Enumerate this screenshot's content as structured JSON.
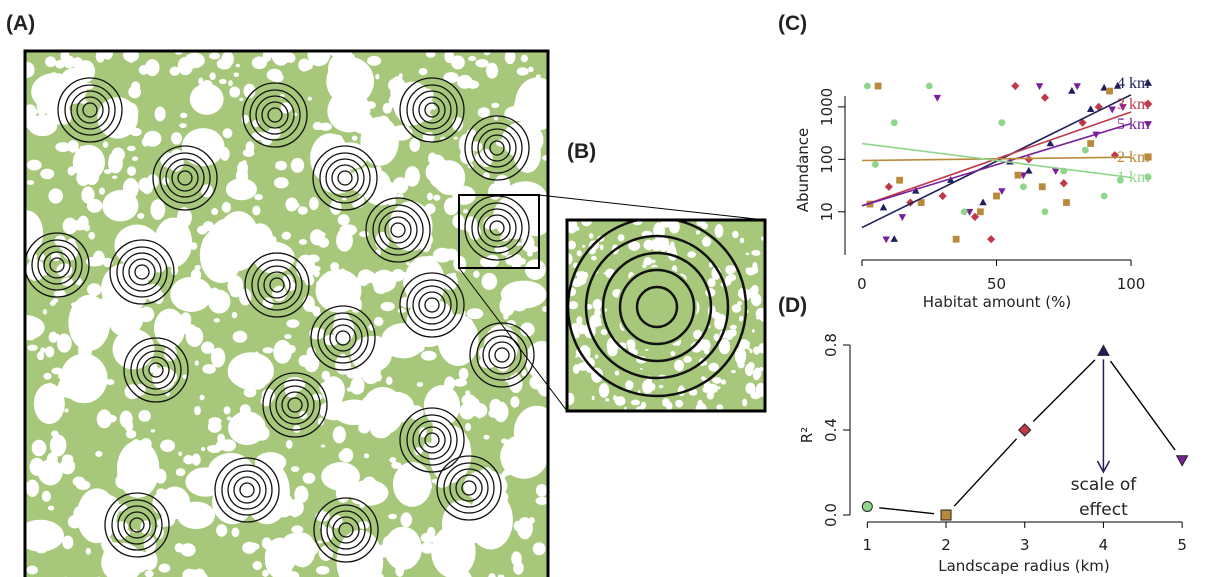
{
  "panel_labels": [
    "(A)",
    "(B)",
    "(C)",
    "(D)"
  ],
  "chart_data": [
    {
      "type": "scatter",
      "x_label": "Habitat amount (%)",
      "y_label": "Abundance",
      "xlim": [
        -5,
        105
      ],
      "xticks": [
        0,
        50,
        100
      ],
      "ylim": [
        1.5,
        2500
      ],
      "yticks": [
        10,
        100,
        1000
      ],
      "log_y": true,
      "series": [
        {
          "name": "4 km",
          "color": "#1f1f5c",
          "marker": "triangle-up",
          "x": [
            8,
            12,
            20,
            33,
            45,
            55,
            62,
            70,
            78,
            85,
            90,
            95
          ],
          "values": [
            12,
            3,
            25,
            40,
            15,
            90,
            60,
            200,
            2000,
            900,
            2300,
            2500
          ],
          "fit": {
            "x": [
              0,
              100
            ],
            "values": [
              5,
              1700
            ]
          }
        },
        {
          "name": "3 km",
          "color": "#c0394a",
          "marker": "diamond",
          "x": [
            10,
            18,
            30,
            42,
            48,
            57,
            62,
            68,
            75,
            82,
            88,
            94
          ],
          "values": [
            30,
            15,
            20,
            8,
            3,
            2500,
            100,
            1500,
            35,
            500,
            1000,
            120
          ],
          "fit": {
            "x": [
              0,
              100
            ],
            "values": [
              13,
              800
            ]
          }
        },
        {
          "name": "5 km",
          "color": "#7a1f9a",
          "marker": "triangle-down",
          "x": [
            9,
            15,
            28,
            40,
            52,
            60,
            66,
            72,
            80,
            87,
            93,
            97
          ],
          "values": [
            3,
            8,
            1500,
            10,
            25,
            50,
            2500,
            60,
            2500,
            300,
            900,
            1000
          ],
          "fit": {
            "x": [
              0,
              100
            ],
            "values": [
              13,
              480
            ]
          }
        },
        {
          "name": "2 km",
          "color": "#b98a3c",
          "marker": "square",
          "x": [
            3,
            6,
            14,
            22,
            35,
            44,
            50,
            58,
            67,
            76,
            85,
            92
          ],
          "values": [
            14,
            2500,
            40,
            15,
            3,
            10,
            20,
            50,
            30,
            15,
            200,
            2000
          ],
          "fit": {
            "x": [
              0,
              100
            ],
            "values": [
              95,
              110
            ]
          }
        },
        {
          "name": "1 km",
          "color": "#8fd68a",
          "marker": "circle",
          "x": [
            2,
            5,
            12,
            25,
            38,
            52,
            60,
            68,
            75,
            83,
            90,
            96
          ],
          "values": [
            2500,
            80,
            500,
            2500,
            10,
            500,
            30,
            10,
            60,
            150,
            20,
            40
          ],
          "fit": {
            "x": [
              0,
              100
            ],
            "values": [
              200,
              45
            ]
          }
        }
      ]
    },
    {
      "type": "line",
      "x_label": "Landscape radius (km)",
      "y_label": "R²",
      "x": [
        1,
        2,
        3,
        4,
        5
      ],
      "values": [
        0.04,
        0.0,
        0.4,
        0.77,
        0.26
      ],
      "colors": [
        "#8fd68a",
        "#b98a3c",
        "#c0394a",
        "#1f1f5c",
        "#7a1f9a"
      ],
      "markers": [
        "circle",
        "square",
        "diamond",
        "triangle-up",
        "triangle-down"
      ],
      "xlim": [
        0.78,
        5.1
      ],
      "xticks": [
        1,
        2,
        3,
        4,
        5
      ],
      "ylim": [
        0,
        0.8
      ],
      "yticks": [
        {
          "value": 0,
          "label": "0.0"
        },
        0.4,
        0.8
      ],
      "annotation": {
        "lines": [
          "scale of",
          "effect"
        ],
        "x": 4
      }
    }
  ]
}
